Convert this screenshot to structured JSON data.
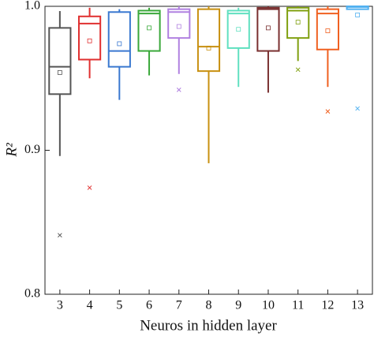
{
  "chart_data": {
    "type": "box",
    "xlabel": "Neuros in hidden layer",
    "ylabel": "R²",
    "categories": [
      "3",
      "4",
      "5",
      "6",
      "7",
      "8",
      "9",
      "10",
      "11",
      "12",
      "13"
    ],
    "ylim": [
      0.8,
      1.0
    ],
    "yticks": [
      0.8,
      0.9,
      {
        "value": 1.0,
        "label": "1.0"
      }
    ],
    "boxes": [
      {
        "color": "#555555",
        "whisker_low": 0.896,
        "q1": 0.939,
        "median": 0.958,
        "q3": 0.985,
        "whisker_high": 0.9967,
        "mean": 0.954,
        "outliers": [
          0.841
        ]
      },
      {
        "color": "#e03030",
        "whisker_low": 0.95,
        "q1": 0.963,
        "median": 0.988,
        "q3": 0.993,
        "whisker_high": 0.999,
        "mean": 0.976,
        "outliers": [
          0.874
        ]
      },
      {
        "color": "#3a78d0",
        "whisker_low": 0.935,
        "q1": 0.958,
        "median": 0.969,
        "q3": 0.996,
        "whisker_high": 0.998,
        "mean": 0.974,
        "outliers": []
      },
      {
        "color": "#3aa83a",
        "whisker_low": 0.952,
        "q1": 0.969,
        "median": 0.995,
        "q3": 0.997,
        "whisker_high": 0.999,
        "mean": 0.985,
        "outliers": []
      },
      {
        "color": "#b080e0",
        "whisker_low": 0.953,
        "q1": 0.978,
        "median": 0.996,
        "q3": 0.998,
        "whisker_high": 1.0,
        "mean": 0.986,
        "outliers": [
          0.942
        ]
      },
      {
        "color": "#c89010",
        "whisker_low": 0.891,
        "q1": 0.955,
        "median": 0.972,
        "q3": 0.998,
        "whisker_high": 1.0,
        "mean": 0.971,
        "outliers": []
      },
      {
        "color": "#60e0c0",
        "whisker_low": 0.944,
        "q1": 0.971,
        "median": 0.995,
        "q3": 0.997,
        "whisker_high": 0.999,
        "mean": 0.984,
        "outliers": []
      },
      {
        "color": "#7a3030",
        "whisker_low": 0.94,
        "q1": 0.969,
        "median": 0.998,
        "q3": 0.999,
        "whisker_high": 1.0,
        "mean": 0.985,
        "outliers": []
      },
      {
        "color": "#80a010",
        "whisker_low": 0.962,
        "q1": 0.978,
        "median": 0.997,
        "q3": 0.999,
        "whisker_high": 1.0,
        "mean": 0.989,
        "outliers": [
          0.956
        ]
      },
      {
        "color": "#f06020",
        "whisker_low": 0.944,
        "q1": 0.97,
        "median": 0.995,
        "q3": 0.998,
        "whisker_high": 1.0,
        "mean": 0.983,
        "outliers": [
          0.927
        ]
      },
      {
        "color": "#50b0f0",
        "whisker_low": 0.998,
        "q1": 0.998,
        "median": 0.9995,
        "q3": 1.0,
        "whisker_high": 1.0,
        "mean": 0.994,
        "outliers": [
          0.929
        ]
      }
    ]
  }
}
